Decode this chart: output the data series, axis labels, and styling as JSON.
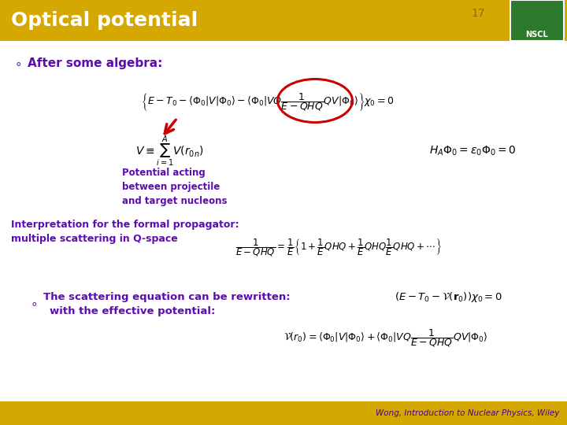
{
  "title": "Optical potential",
  "slide_number": "17",
  "header_bg": "#D4A800",
  "body_bg": "#FFFFFF",
  "footer_bg": "#D4A800",
  "footer_text": "Wong, Introduction to Nuclear Physics, Wiley",
  "footer_color": "#4B0082",
  "title_color": "#FFFFFF",
  "bullet_color": "#5B0DAF",
  "annotation_color": "#5B0DAF",
  "circle_color": "#CC0000",
  "arrow_color": "#CC0000",
  "slide_num_color": "#8B6914",
  "eq_color": "#000000"
}
